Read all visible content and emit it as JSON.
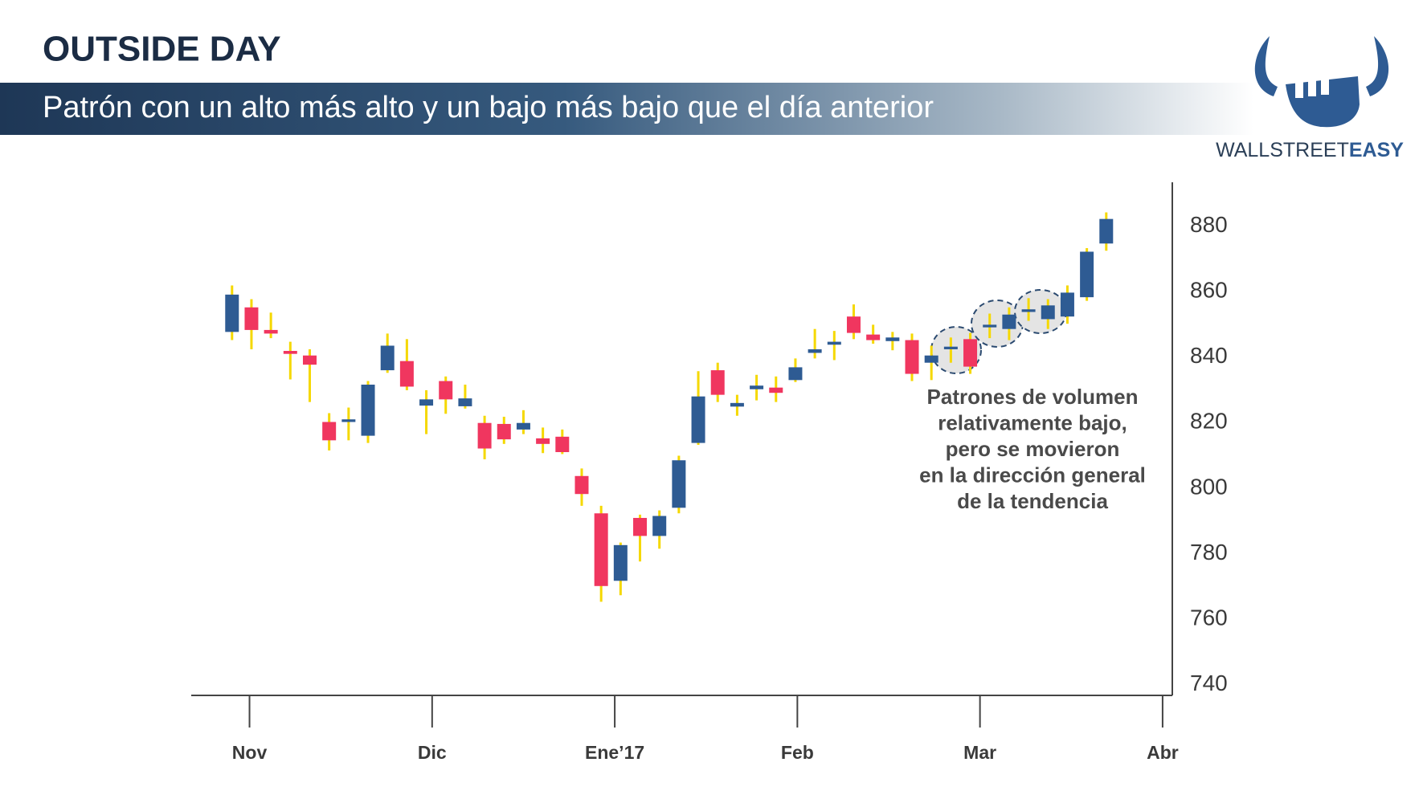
{
  "header": {
    "title": "OUTSIDE DAY",
    "subtitle": "Patrón con un alto más alto y un bajo más bajo que el día anterior"
  },
  "logo": {
    "text_light": "WALLSTREET",
    "text_bold": "EASY"
  },
  "chart_data": {
    "type": "candlestick",
    "annotation": [
      "Patrones de volumen",
      "relativamente bajo,",
      "pero se movieron",
      "en la dirección general",
      "de la tendencia"
    ],
    "x": [
      0,
      1,
      2,
      3,
      4,
      5,
      6,
      7,
      8,
      9,
      10,
      11,
      12,
      13,
      14,
      15,
      16,
      17,
      18,
      19,
      20,
      21,
      22,
      23,
      24,
      25,
      26,
      27,
      28,
      29,
      30,
      31,
      32,
      33,
      34,
      35,
      36,
      37,
      38,
      39,
      40,
      41,
      42,
      43,
      44,
      45
    ],
    "open": [
      847.7,
      855.2,
      848.3,
      841.9,
      840.5,
      820.2,
      820.2,
      816.0,
      836.0,
      838.8,
      825.2,
      832.7,
      825.0,
      819.9,
      819.6,
      817.9,
      815.2,
      815.7,
      803.7,
      792.3,
      771.7,
      790.9,
      785.4,
      794.0,
      813.8,
      836.0,
      824.9,
      830.2,
      830.7,
      833.0,
      841.3,
      843.8,
      852.4,
      846.9,
      844.9,
      845.2,
      838.3,
      842.4,
      845.5,
      849.1,
      848.6,
      853.8,
      851.6,
      852.4,
      858.3,
      874.7
    ],
    "high": [
      861.9,
      857.7,
      853.6,
      844.7,
      842.4,
      822.9,
      824.6,
      832.7,
      847.2,
      845.5,
      829.9,
      834.1,
      831.6,
      822.1,
      821.8,
      823.8,
      818.5,
      817.9,
      806.0,
      794.6,
      783.4,
      791.9,
      793.2,
      809.9,
      835.7,
      838.3,
      828.5,
      834.6,
      834.1,
      839.6,
      848.6,
      848.0,
      856.1,
      849.9,
      847.7,
      847.2,
      843.5,
      846.0,
      847.4,
      853.3,
      855.2,
      858.0,
      857.7,
      861.9,
      873.3,
      884.2
    ],
    "low": [
      845.2,
      842.4,
      845.8,
      833.2,
      826.3,
      811.5,
      814.6,
      813.8,
      835.2,
      829.9,
      816.5,
      822.7,
      824.3,
      808.8,
      813.5,
      816.5,
      810.7,
      810.4,
      794.6,
      765.3,
      767.3,
      777.6,
      781.5,
      792.3,
      813.2,
      826.3,
      822.1,
      826.8,
      826.3,
      832.4,
      839.6,
      839.1,
      845.5,
      844.1,
      842.1,
      832.7,
      833.0,
      838.3,
      834.9,
      845.8,
      845.2,
      851.1,
      848.6,
      850.2,
      857.2,
      872.5
    ],
    "close": [
      859.1,
      848.3,
      847.2,
      841.0,
      837.7,
      814.6,
      821.0,
      831.6,
      843.5,
      831.0,
      827.1,
      827.1,
      827.4,
      812.1,
      814.9,
      819.9,
      813.5,
      811.0,
      798.2,
      770.1,
      782.6,
      785.4,
      791.5,
      808.5,
      828.0,
      828.5,
      826.0,
      831.3,
      829.1,
      836.9,
      842.4,
      844.7,
      847.4,
      845.2,
      846.0,
      834.9,
      840.5,
      843.2,
      837.1,
      849.9,
      853.0,
      854.6,
      855.8,
      859.7,
      872.2,
      882.2
    ],
    "up_color": "#2e5b93",
    "down_color": "#f0365f",
    "wick_color": "#f5d800",
    "xlim": [
      -2.1,
      48.4
    ],
    "ylim": [
      736.7,
      893.4
    ],
    "xticks": [
      {
        "value": 0.9,
        "label": "Nov"
      },
      {
        "value": 10.3,
        "label": "Dic"
      },
      {
        "value": 19.7,
        "label": "Ene’17"
      },
      {
        "value": 29.1,
        "label": "Feb"
      },
      {
        "value": 38.5,
        "label": "Mar"
      },
      {
        "value": 47.9,
        "label": "Abr"
      }
    ],
    "yticks": [
      740,
      760,
      780,
      800,
      820,
      840,
      860,
      880
    ],
    "grid": false
  }
}
